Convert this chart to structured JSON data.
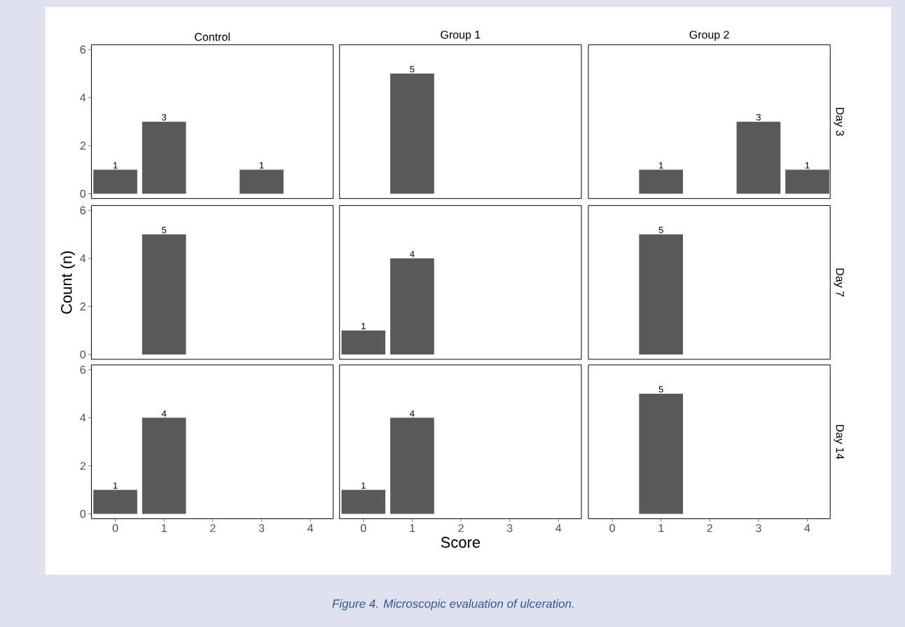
{
  "chart_data": [
    {
      "type": "bar",
      "title": "Control",
      "categories": [
        "0",
        "1",
        "2",
        "3",
        "4"
      ],
      "values": [
        1,
        3,
        null,
        1,
        null
      ],
      "color": "#595959",
      "ylim": [
        -0.2,
        6.2
      ],
      "yticks": [
        0,
        2,
        4,
        6
      ],
      "data_labels": true,
      "tick_labels": "y"
    },
    {
      "type": "bar",
      "title": "Group 1",
      "categories": [
        "0",
        "1",
        "2",
        "3",
        "4"
      ],
      "values": [
        null,
        5,
        null,
        null,
        null
      ],
      "color": "#595959",
      "ylim": [
        -0.2,
        6.2
      ],
      "yticks": [
        0,
        2,
        4,
        6
      ],
      "data_labels": true,
      "tick_labels": false
    },
    {
      "type": "bar",
      "title": "Group 2",
      "y2label": "Day 3",
      "categories": [
        "0",
        "1",
        "2",
        "3",
        "4"
      ],
      "values": [
        null,
        1,
        null,
        3,
        1
      ],
      "color": "#595959",
      "ylim": [
        -0.2,
        6.2
      ],
      "yticks": [
        0,
        2,
        4,
        6
      ],
      "data_labels": true,
      "tick_labels": false
    },
    {
      "type": "bar",
      "ylabel": "Count (n)",
      "categories": [
        "0",
        "1",
        "2",
        "3",
        "4"
      ],
      "values": [
        null,
        5,
        null,
        null,
        null
      ],
      "color": "#595959",
      "ylim": [
        -0.2,
        6.2
      ],
      "yticks": [
        0,
        2,
        4,
        6
      ],
      "data_labels": true,
      "tick_labels": "y"
    },
    {
      "type": "bar",
      "categories": [
        "0",
        "1",
        "2",
        "3",
        "4"
      ],
      "values": [
        1,
        4,
        null,
        null,
        null
      ],
      "color": "#595959",
      "ylim": [
        -0.2,
        6.2
      ],
      "yticks": [
        0,
        2,
        4,
        6
      ],
      "data_labels": true,
      "tick_labels": false
    },
    {
      "type": "bar",
      "y2label": "Day 7",
      "categories": [
        "0",
        "1",
        "2",
        "3",
        "4"
      ],
      "values": [
        null,
        5,
        null,
        null,
        null
      ],
      "color": "#595959",
      "ylim": [
        -0.2,
        6.2
      ],
      "yticks": [
        0,
        2,
        4,
        6
      ],
      "data_labels": true,
      "tick_labels": false
    },
    {
      "type": "bar",
      "categories": [
        "0",
        "1",
        "2",
        "3",
        "4"
      ],
      "values": [
        1,
        4,
        null,
        null,
        null
      ],
      "color": "#595959",
      "ylim": [
        -0.2,
        6.2
      ],
      "yticks": [
        0,
        2,
        4,
        6
      ],
      "data_labels": true
    },
    {
      "type": "bar",
      "xlabel": "Score",
      "categories": [
        "0",
        "1",
        "2",
        "3",
        "4"
      ],
      "values": [
        1,
        4,
        null,
        null,
        null
      ],
      "color": "#595959",
      "ylim": [
        -0.2,
        6.2
      ],
      "yticks": [
        0,
        2,
        4,
        6
      ],
      "data_labels": true,
      "tick_labels": "x"
    },
    {
      "type": "bar",
      "y2label": "Day 14",
      "annotations": [
        "*Figure 4. Microscopic evaluation of ulceration.*"
      ],
      "categories": [
        "0",
        "1",
        "2",
        "3",
        "4"
      ],
      "values": [
        null,
        5,
        null,
        null,
        null
      ],
      "color": "#595959",
      "ylim": [
        -0.2,
        6.2
      ],
      "yticks": [
        0,
        2,
        4,
        6
      ],
      "data_labels": true,
      "tick_labels": "x"
    }
  ]
}
